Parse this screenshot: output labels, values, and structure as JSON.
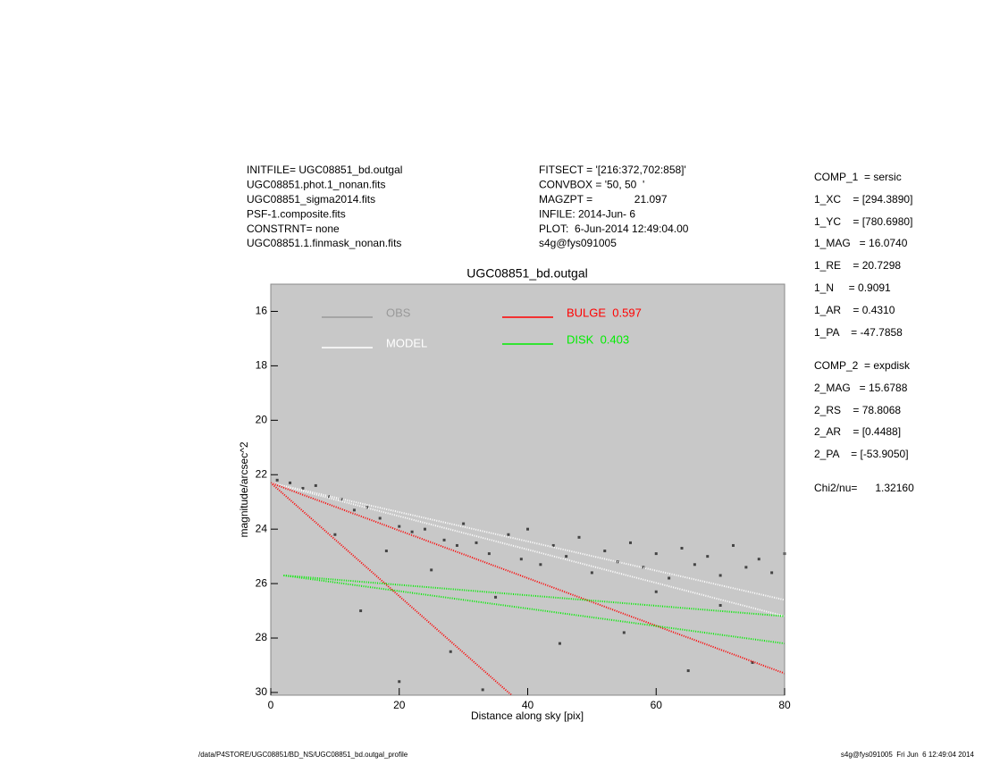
{
  "chart_data": {
    "type": "profile",
    "title": "UGC08851_bd.outgal",
    "xlabel": "Distance along sky [pix]",
    "ylabel": "magnitude/arcsec^2",
    "xlim": [
      0,
      80
    ],
    "xticks": [
      0,
      20,
      40,
      60,
      80
    ],
    "ylim": [
      15,
      30.1
    ],
    "y_inverted": true,
    "yticks": [
      16,
      18,
      20,
      22,
      24,
      26,
      28,
      30
    ],
    "background": "#c8c8c8",
    "header_left": [
      "INITFILE= UGC08851_bd.outgal",
      "UGC08851.phot.1_nonan.fits",
      "UGC08851_sigma2014.fits",
      "PSF-1.composite.fits",
      "CONSTRNT= none",
      "UGC08851.1.finmask_nonan.fits"
    ],
    "header_mid": [
      "FITSECT = '[216:372,702:858]'",
      "CONVBOX = '50, 50  '",
      "MAGZPT =              21.097",
      "INFILE: 2014-Jun- 6",
      "PLOT:  6-Jun-2014 12:49:04.00",
      "s4g@fys091005"
    ],
    "params": [
      "COMP_1  = sersic",
      "1_XC    = [294.3890]",
      "1_YC    = [780.6980]",
      "1_MAG   = 16.0740",
      "1_RE    = 20.7298",
      "1_N     = 0.9091",
      "1_AR    = 0.4310",
      "1_PA    = -47.7858",
      "COMP_2  = expdisk",
      "2_MAG   = 15.6788",
      "2_RS    = 78.8068",
      "2_AR    = [0.4488]",
      "2_PA    = [-53.9050]",
      "Chi2/nu=      1.32160"
    ],
    "footer_left": "/data/P4STORE/UGC08851/BD_NS/UGC08851_bd.outgal_profile",
    "footer_right": "s4g@fys091005  Fri Jun  6 12:49:04 2014",
    "series": [
      {
        "name": "OBS",
        "kind": "scatter",
        "color": "#444444",
        "legend_color": "#999999",
        "x": [
          1,
          3,
          5,
          7,
          9,
          11,
          13,
          15,
          17,
          18,
          20,
          22,
          24,
          25,
          27,
          29,
          30,
          32,
          34,
          35,
          37,
          39,
          40,
          42,
          44,
          46,
          48,
          50,
          52,
          54,
          56,
          58,
          60,
          62,
          64,
          66,
          68,
          70,
          72,
          74,
          76,
          78,
          80,
          14,
          20,
          28,
          45,
          55,
          65,
          75,
          33,
          10,
          60,
          70
        ],
        "values": [
          22.2,
          22.3,
          22.5,
          22.4,
          22.8,
          22.9,
          23.3,
          23.2,
          23.6,
          24.8,
          23.9,
          24.1,
          24.0,
          25.5,
          24.4,
          24.6,
          23.8,
          24.5,
          24.9,
          26.5,
          24.2,
          25.1,
          24.0,
          25.3,
          24.6,
          25.0,
          24.3,
          25.6,
          24.8,
          25.2,
          24.5,
          25.4,
          24.9,
          25.8,
          24.7,
          25.3,
          25.0,
          25.7,
          24.6,
          25.4,
          25.1,
          25.6,
          24.9,
          27.0,
          29.6,
          28.5,
          28.2,
          27.8,
          29.2,
          28.9,
          29.9,
          24.2,
          26.3,
          26.8
        ]
      },
      {
        "name": "MODEL",
        "kind": "band",
        "color": "#ffffff",
        "x": [
          0,
          80
        ],
        "values": [
          22.3,
          26.6
        ],
        "values_lower": [
          22.3,
          27.2
        ]
      },
      {
        "name": "BULGE  0.597",
        "kind": "band",
        "color": "#ff0000",
        "x": [
          0,
          80
        ],
        "values": [
          22.3,
          29.3
        ],
        "x_lower": [
          0,
          37.5
        ],
        "values_lower": [
          22.3,
          30.1
        ]
      },
      {
        "name": "DISK  0.403",
        "kind": "band",
        "color": "#00ee00",
        "x": [
          2,
          80
        ],
        "values": [
          25.7,
          27.2
        ],
        "values_lower": [
          25.7,
          28.2
        ]
      }
    ]
  }
}
